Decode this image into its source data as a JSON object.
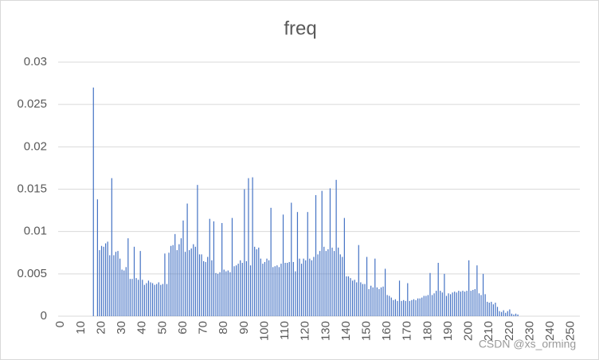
{
  "chart_data": {
    "type": "bar",
    "title": "freq",
    "watermark": "CSDN @xs_orming",
    "categories": [
      "0",
      null,
      null,
      null,
      null,
      null,
      null,
      null,
      null,
      null,
      "10",
      null,
      null,
      null,
      null,
      null,
      null,
      null,
      null,
      null,
      "20",
      null,
      null,
      null,
      null,
      null,
      null,
      null,
      null,
      null,
      "30",
      null,
      null,
      null,
      null,
      null,
      null,
      null,
      null,
      null,
      "40",
      null,
      null,
      null,
      null,
      null,
      null,
      null,
      null,
      null,
      "50",
      null,
      null,
      null,
      null,
      null,
      null,
      null,
      null,
      null,
      "60",
      null,
      null,
      null,
      null,
      null,
      null,
      null,
      null,
      null,
      "70",
      null,
      null,
      null,
      null,
      null,
      null,
      null,
      null,
      null,
      "80",
      null,
      null,
      null,
      null,
      null,
      null,
      null,
      null,
      null,
      "90",
      null,
      null,
      null,
      null,
      null,
      null,
      null,
      null,
      null,
      "100",
      null,
      null,
      null,
      null,
      null,
      null,
      null,
      null,
      null,
      "110",
      null,
      null,
      null,
      null,
      null,
      null,
      null,
      null,
      null,
      "120",
      null,
      null,
      null,
      null,
      null,
      null,
      null,
      null,
      null,
      "130",
      null,
      null,
      null,
      null,
      null,
      null,
      null,
      null,
      null,
      "140",
      null,
      null,
      null,
      null,
      null,
      null,
      null,
      null,
      null,
      "150",
      null,
      null,
      null,
      null,
      null,
      null,
      null,
      null,
      null,
      "160",
      null,
      null,
      null,
      null,
      null,
      null,
      null,
      null,
      null,
      "170",
      null,
      null,
      null,
      null,
      null,
      null,
      null,
      null,
      null,
      "180",
      null,
      null,
      null,
      null,
      null,
      null,
      null,
      null,
      null,
      "190",
      null,
      null,
      null,
      null,
      null,
      null,
      null,
      null,
      null,
      "200",
      null,
      null,
      null,
      null,
      null,
      null,
      null,
      null,
      null,
      "210",
      null,
      null,
      null,
      null,
      null,
      null,
      null,
      null,
      null,
      "220",
      null,
      null,
      null,
      null,
      null,
      null,
      null,
      null,
      null,
      "230",
      null,
      null,
      null,
      null,
      null,
      null,
      null,
      null,
      null,
      "240",
      null,
      null,
      null,
      null,
      null,
      null,
      null,
      null,
      null,
      "250"
    ],
    "values": [
      0,
      0,
      0,
      0,
      0,
      0,
      0,
      0,
      0,
      0,
      0,
      0,
      0,
      0,
      0,
      0,
      0.027,
      0,
      0.0138,
      0.0078,
      0.0083,
      0.0082,
      0.0086,
      0.0088,
      0.0072,
      0.0163,
      0.0072,
      0.0076,
      0.0077,
      0.0068,
      0.0055,
      0.0054,
      0.0058,
      0.0092,
      0.0044,
      0.0044,
      0.0082,
      0.0045,
      0.0043,
      0.0077,
      0.0043,
      0.0037,
      0.0039,
      0.0042,
      0.004,
      0.0039,
      0.0037,
      0.0038,
      0.004,
      0.0037,
      0.0038,
      0.0074,
      0.0038,
      0.0075,
      0.0083,
      0.0084,
      0.0097,
      0.0078,
      0.0085,
      0.0092,
      0.0113,
      0.0076,
      0.0133,
      0.0078,
      0.008,
      0.0085,
      0.0082,
      0.0155,
      0.0073,
      0.0073,
      0.0065,
      0.0064,
      0.007,
      0.0115,
      0.0066,
      0.0112,
      0.0051,
      0.005,
      0.0052,
      0.011,
      0.0055,
      0.0053,
      0.0054,
      0.0052,
      0.0116,
      0.0059,
      0.006,
      0.0062,
      0.0066,
      0.0063,
      0.015,
      0.0065,
      0.0163,
      0.006,
      0.0164,
      0.0082,
      0.0079,
      0.0081,
      0.0068,
      0.0062,
      0.0064,
      0.0068,
      0.0066,
      0.0128,
      0.0058,
      0.0059,
      0.006,
      0.0058,
      0.0062,
      0.012,
      0.0063,
      0.0063,
      0.0064,
      0.0134,
      0.0064,
      0.0053,
      0.0123,
      0.0068,
      0.0062,
      0.0068,
      0.0066,
      0.0123,
      0.0068,
      0.0066,
      0.007,
      0.0143,
      0.0073,
      0.0077,
      0.0148,
      0.0082,
      0.0077,
      0.0079,
      0.0151,
      0.0081,
      0.0077,
      0.0161,
      0.0081,
      0.0073,
      0.007,
      0.0116,
      0.0047,
      0.0047,
      0.0045,
      0.0042,
      0.0043,
      0.004,
      0.0084,
      0.004,
      0.0038,
      0.0038,
      0.007,
      0.0032,
      0.0036,
      0.0034,
      0.0068,
      0.0034,
      0.0032,
      0.0034,
      0.0035,
      0.0056,
      0.0025,
      0.0024,
      0.0022,
      0.0019,
      0.002,
      0.0018,
      0.0042,
      0.0018,
      0.0019,
      0.0018,
      0.0039,
      0.0018,
      0.0019,
      0.002,
      0.0019,
      0.0021,
      0.0021,
      0.0022,
      0.0024,
      0.0024,
      0.0025,
      0.0051,
      0.0025,
      0.0027,
      0.003,
      0.0063,
      0.003,
      0.0028,
      0.005,
      0.0024,
      0.0027,
      0.0026,
      0.0028,
      0.0029,
      0.0028,
      0.003,
      0.0029,
      0.003,
      0.0029,
      0.003,
      0.0066,
      0.003,
      0.0031,
      0.0032,
      0.006,
      0.0027,
      0.0025,
      0.005,
      0.0026,
      0.0017,
      0.0016,
      0.0017,
      0.0014,
      0.0016,
      0.0011,
      0.0006,
      0.0005,
      0.0007,
      0.0004,
      0.0006,
      0.0008,
      0.0003,
      0.0002,
      0.0003,
      0.0002,
      0,
      0,
      0,
      0,
      0,
      0,
      0,
      0,
      0,
      0,
      0,
      0,
      0,
      0,
      0,
      0,
      0,
      0,
      0,
      0,
      0,
      0,
      0,
      0,
      0,
      0
    ],
    "color": "#4472c4",
    "ylim": [
      0,
      0.03
    ],
    "yticks": [
      0,
      0.005,
      0.01,
      0.015,
      0.02,
      0.025,
      0.03
    ],
    "grid": true
  }
}
